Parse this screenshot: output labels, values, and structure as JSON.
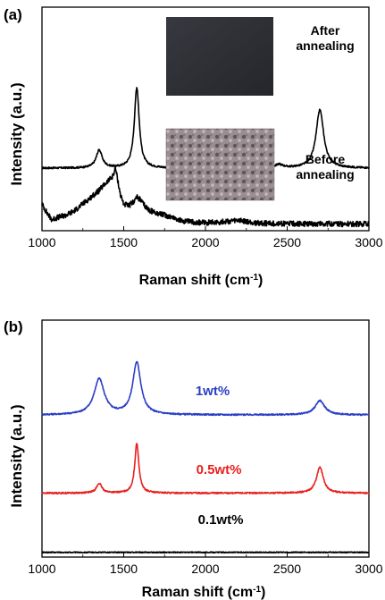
{
  "figure": {
    "panels": [
      {
        "label": "(a)",
        "xlabel_main": "Raman shift (cm",
        "xlabel_sup": "-1",
        "xlabel_end": ")",
        "ylabel": "Intensity (a.u.)",
        "series_labels": [
          {
            "key": "after",
            "lines": [
              "After",
              "annealing"
            ]
          },
          {
            "key": "before",
            "lines": [
              "Before",
              "annealing"
            ]
          }
        ]
      },
      {
        "label": "(b)",
        "xlabel_main": "Raman shift (cm",
        "xlabel_sup": "-1",
        "xlabel_end": ")",
        "ylabel": "Intensity (a.u.)",
        "series_labels": [
          {
            "key": "1wt",
            "lines": [
              "1wt%"
            ]
          },
          {
            "key": "05wt",
            "lines": [
              "0.5wt%"
            ]
          },
          {
            "key": "01wt",
            "lines": [
              "0.1wt%"
            ]
          }
        ]
      }
    ]
  },
  "chart_data": [
    {
      "type": "line",
      "panel": "(a)",
      "xlabel": "Raman shift (cm-1)",
      "ylabel": "Intensity (a.u.)",
      "xlim": [
        1000,
        3000
      ],
      "xticks": [
        1000,
        1500,
        2000,
        2500,
        3000
      ],
      "y_units": "arbitrary (normalized, offset traces)",
      "series": [
        {
          "key": "after",
          "name": "After annealing",
          "color": "#000000",
          "baseline": 0.28,
          "peaks": [
            {
              "x": 1350,
              "height": 0.08,
              "width": 22
            },
            {
              "x": 1580,
              "height": 0.36,
              "width": 18
            },
            {
              "x": 2450,
              "height": 0.015,
              "width": 30
            },
            {
              "x": 2700,
              "height": 0.26,
              "width": 28
            }
          ],
          "noise": 0.004
        },
        {
          "key": "before",
          "name": "Before annealing",
          "color": "#000000",
          "baseline": 0.02,
          "points": [
            [
              1000,
              0.1
            ],
            [
              1030,
              0.06
            ],
            [
              1060,
              0.03
            ],
            [
              1100,
              0.04
            ],
            [
              1150,
              0.05
            ],
            [
              1200,
              0.07
            ],
            [
              1250,
              0.1
            ],
            [
              1300,
              0.13
            ],
            [
              1350,
              0.16
            ],
            [
              1400,
              0.2
            ],
            [
              1430,
              0.22
            ],
            [
              1450,
              0.26
            ],
            [
              1460,
              0.22
            ],
            [
              1480,
              0.14
            ],
            [
              1500,
              0.1
            ],
            [
              1530,
              0.09
            ],
            [
              1560,
              0.11
            ],
            [
              1580,
              0.13
            ],
            [
              1600,
              0.12
            ],
            [
              1630,
              0.09
            ],
            [
              1660,
              0.07
            ],
            [
              1700,
              0.06
            ],
            [
              1750,
              0.05
            ],
            [
              1800,
              0.04
            ],
            [
              1850,
              0.025
            ],
            [
              1900,
              0.02
            ],
            [
              2000,
              0.015
            ],
            [
              2100,
              0.02
            ],
            [
              2200,
              0.025
            ],
            [
              2300,
              0.015
            ],
            [
              2400,
              0.012
            ],
            [
              2500,
              0.012
            ],
            [
              2600,
              0.01
            ],
            [
              2700,
              0.012
            ],
            [
              2800,
              0.01
            ],
            [
              2900,
              0.01
            ],
            [
              3000,
              0.01
            ]
          ],
          "noise": 0.012
        }
      ]
    },
    {
      "type": "line",
      "panel": "(b)",
      "xlabel": "Raman shift (cm-1)",
      "ylabel": "Intensity (a.u.)",
      "xlim": [
        1000,
        3000
      ],
      "xticks": [
        1000,
        1500,
        2000,
        2500,
        3000
      ],
      "y_units": "arbitrary (normalized, offset traces)",
      "series": [
        {
          "key": "1wt",
          "name": "1wt%",
          "color": "#2a3fc4",
          "baseline": 0.6,
          "peaks": [
            {
              "x": 1350,
              "height": 0.15,
              "width": 38
            },
            {
              "x": 1580,
              "height": 0.22,
              "width": 30
            },
            {
              "x": 2700,
              "height": 0.06,
              "width": 35
            }
          ],
          "noise": 0.003
        },
        {
          "key": "05wt",
          "name": "0.5wt%",
          "color": "#e8201e",
          "baseline": 0.27,
          "peaks": [
            {
              "x": 1350,
              "height": 0.04,
              "width": 20
            },
            {
              "x": 1580,
              "height": 0.21,
              "width": 15
            },
            {
              "x": 2700,
              "height": 0.11,
              "width": 25
            }
          ],
          "noise": 0.003
        },
        {
          "key": "01wt",
          "name": "0.1wt%",
          "color": "#000000",
          "baseline": 0.02,
          "peaks": [],
          "noise": 0.002
        }
      ]
    }
  ]
}
